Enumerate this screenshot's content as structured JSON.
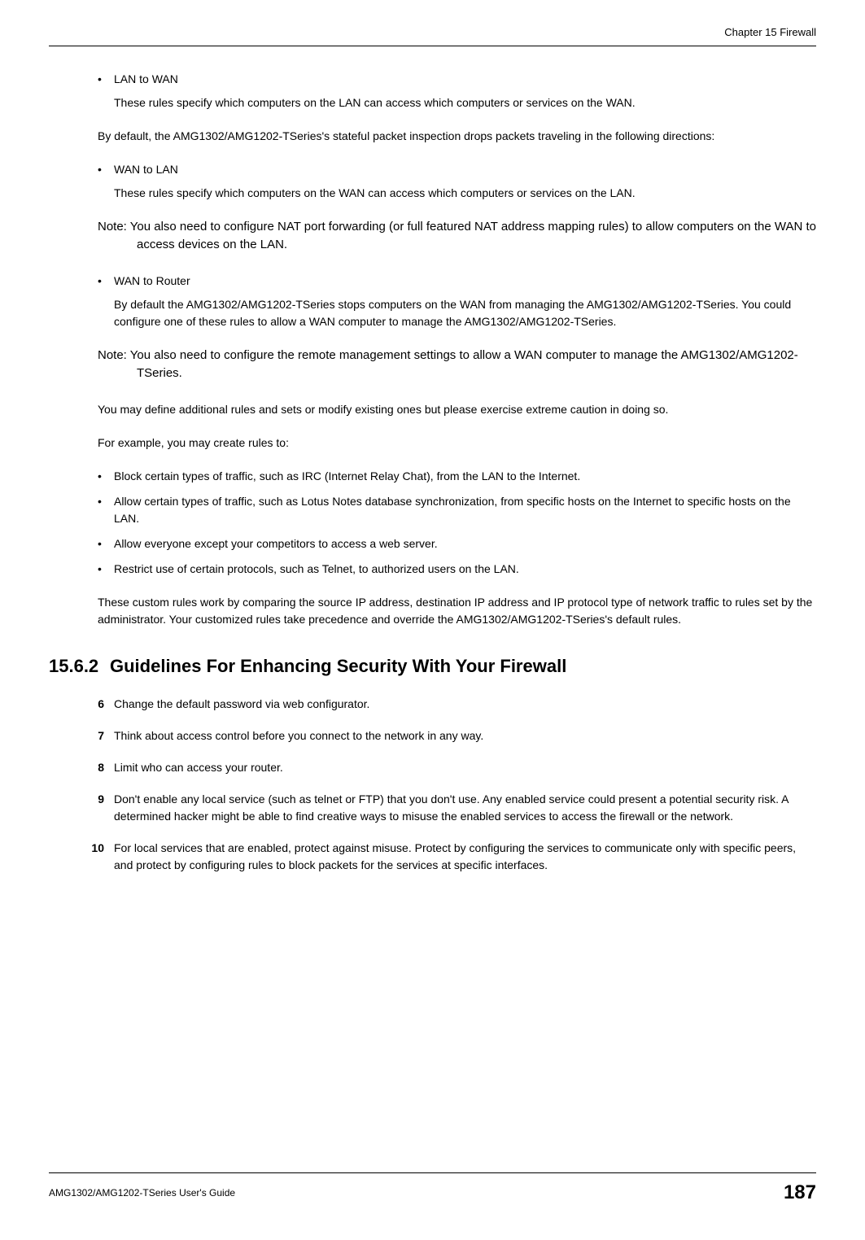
{
  "header": {
    "chapter": "Chapter 15 Firewall"
  },
  "body": {
    "bullet1_title": "LAN to WAN",
    "bullet1_desc": "These rules specify which computers on the LAN can access which computers or services on the WAN.",
    "para1": "By default, the AMG1302/AMG1202-TSeries's stateful packet inspection drops packets traveling in the following directions:",
    "bullet2_title": "WAN to LAN",
    "bullet2_desc": "These rules specify which computers on the WAN can access which computers or services on the LAN.",
    "note1": "Note: You also need to configure NAT port forwarding (or full featured NAT address mapping rules) to allow computers on the WAN to access devices on the LAN.",
    "bullet3_title": "WAN to Router",
    "bullet3_desc": "By default the AMG1302/AMG1202-TSeries stops computers on the WAN from managing the AMG1302/AMG1202-TSeries. You could configure one of these rules to allow a WAN computer to manage the AMG1302/AMG1202-TSeries.",
    "note2": "Note: You also need to configure the remote management settings to allow a WAN computer to manage the AMG1302/AMG1202-TSeries.",
    "para2": "You may define additional rules and sets or modify existing ones but please exercise extreme caution in doing so.",
    "para3": "For example, you may create rules to:",
    "ex1": "Block certain types of traffic, such as IRC (Internet Relay Chat), from the LAN to the Internet.",
    "ex2": "Allow certain types of traffic, such as Lotus Notes database synchronization, from specific hosts on the Internet to specific hosts on the LAN.",
    "ex3": "Allow everyone except your competitors to access a web server.",
    "ex4": "Restrict use of certain protocols, such as Telnet, to authorized users on the LAN.",
    "para4": "These custom rules work by comparing the source IP address, destination IP address and IP protocol type of network traffic to rules set by the administrator. Your customized rules take precedence and override the AMG1302/AMG1202-TSeries's default rules."
  },
  "section": {
    "number": "15.6.2",
    "title": "Guidelines For Enhancing Security With Your Firewall",
    "items": [
      {
        "n": "6",
        "t": "Change the default password via web configurator."
      },
      {
        "n": "7",
        "t": "Think about access control before you connect to the network in any way."
      },
      {
        "n": "8",
        "t": "Limit who can access your router."
      },
      {
        "n": "9",
        "t": "Don't enable any local service (such as telnet or FTP) that you don't use. Any enabled service could present a potential security risk. A determined hacker might be able to find creative ways to misuse the enabled services to access the firewall or the network."
      },
      {
        "n": "10",
        "t": "For local services that are enabled, protect against misuse. Protect by configuring the services to communicate only with specific peers, and protect by configuring rules to block packets for the services at specific interfaces."
      }
    ]
  },
  "footer": {
    "guide": "AMG1302/AMG1202-TSeries User's Guide",
    "page": "187"
  }
}
